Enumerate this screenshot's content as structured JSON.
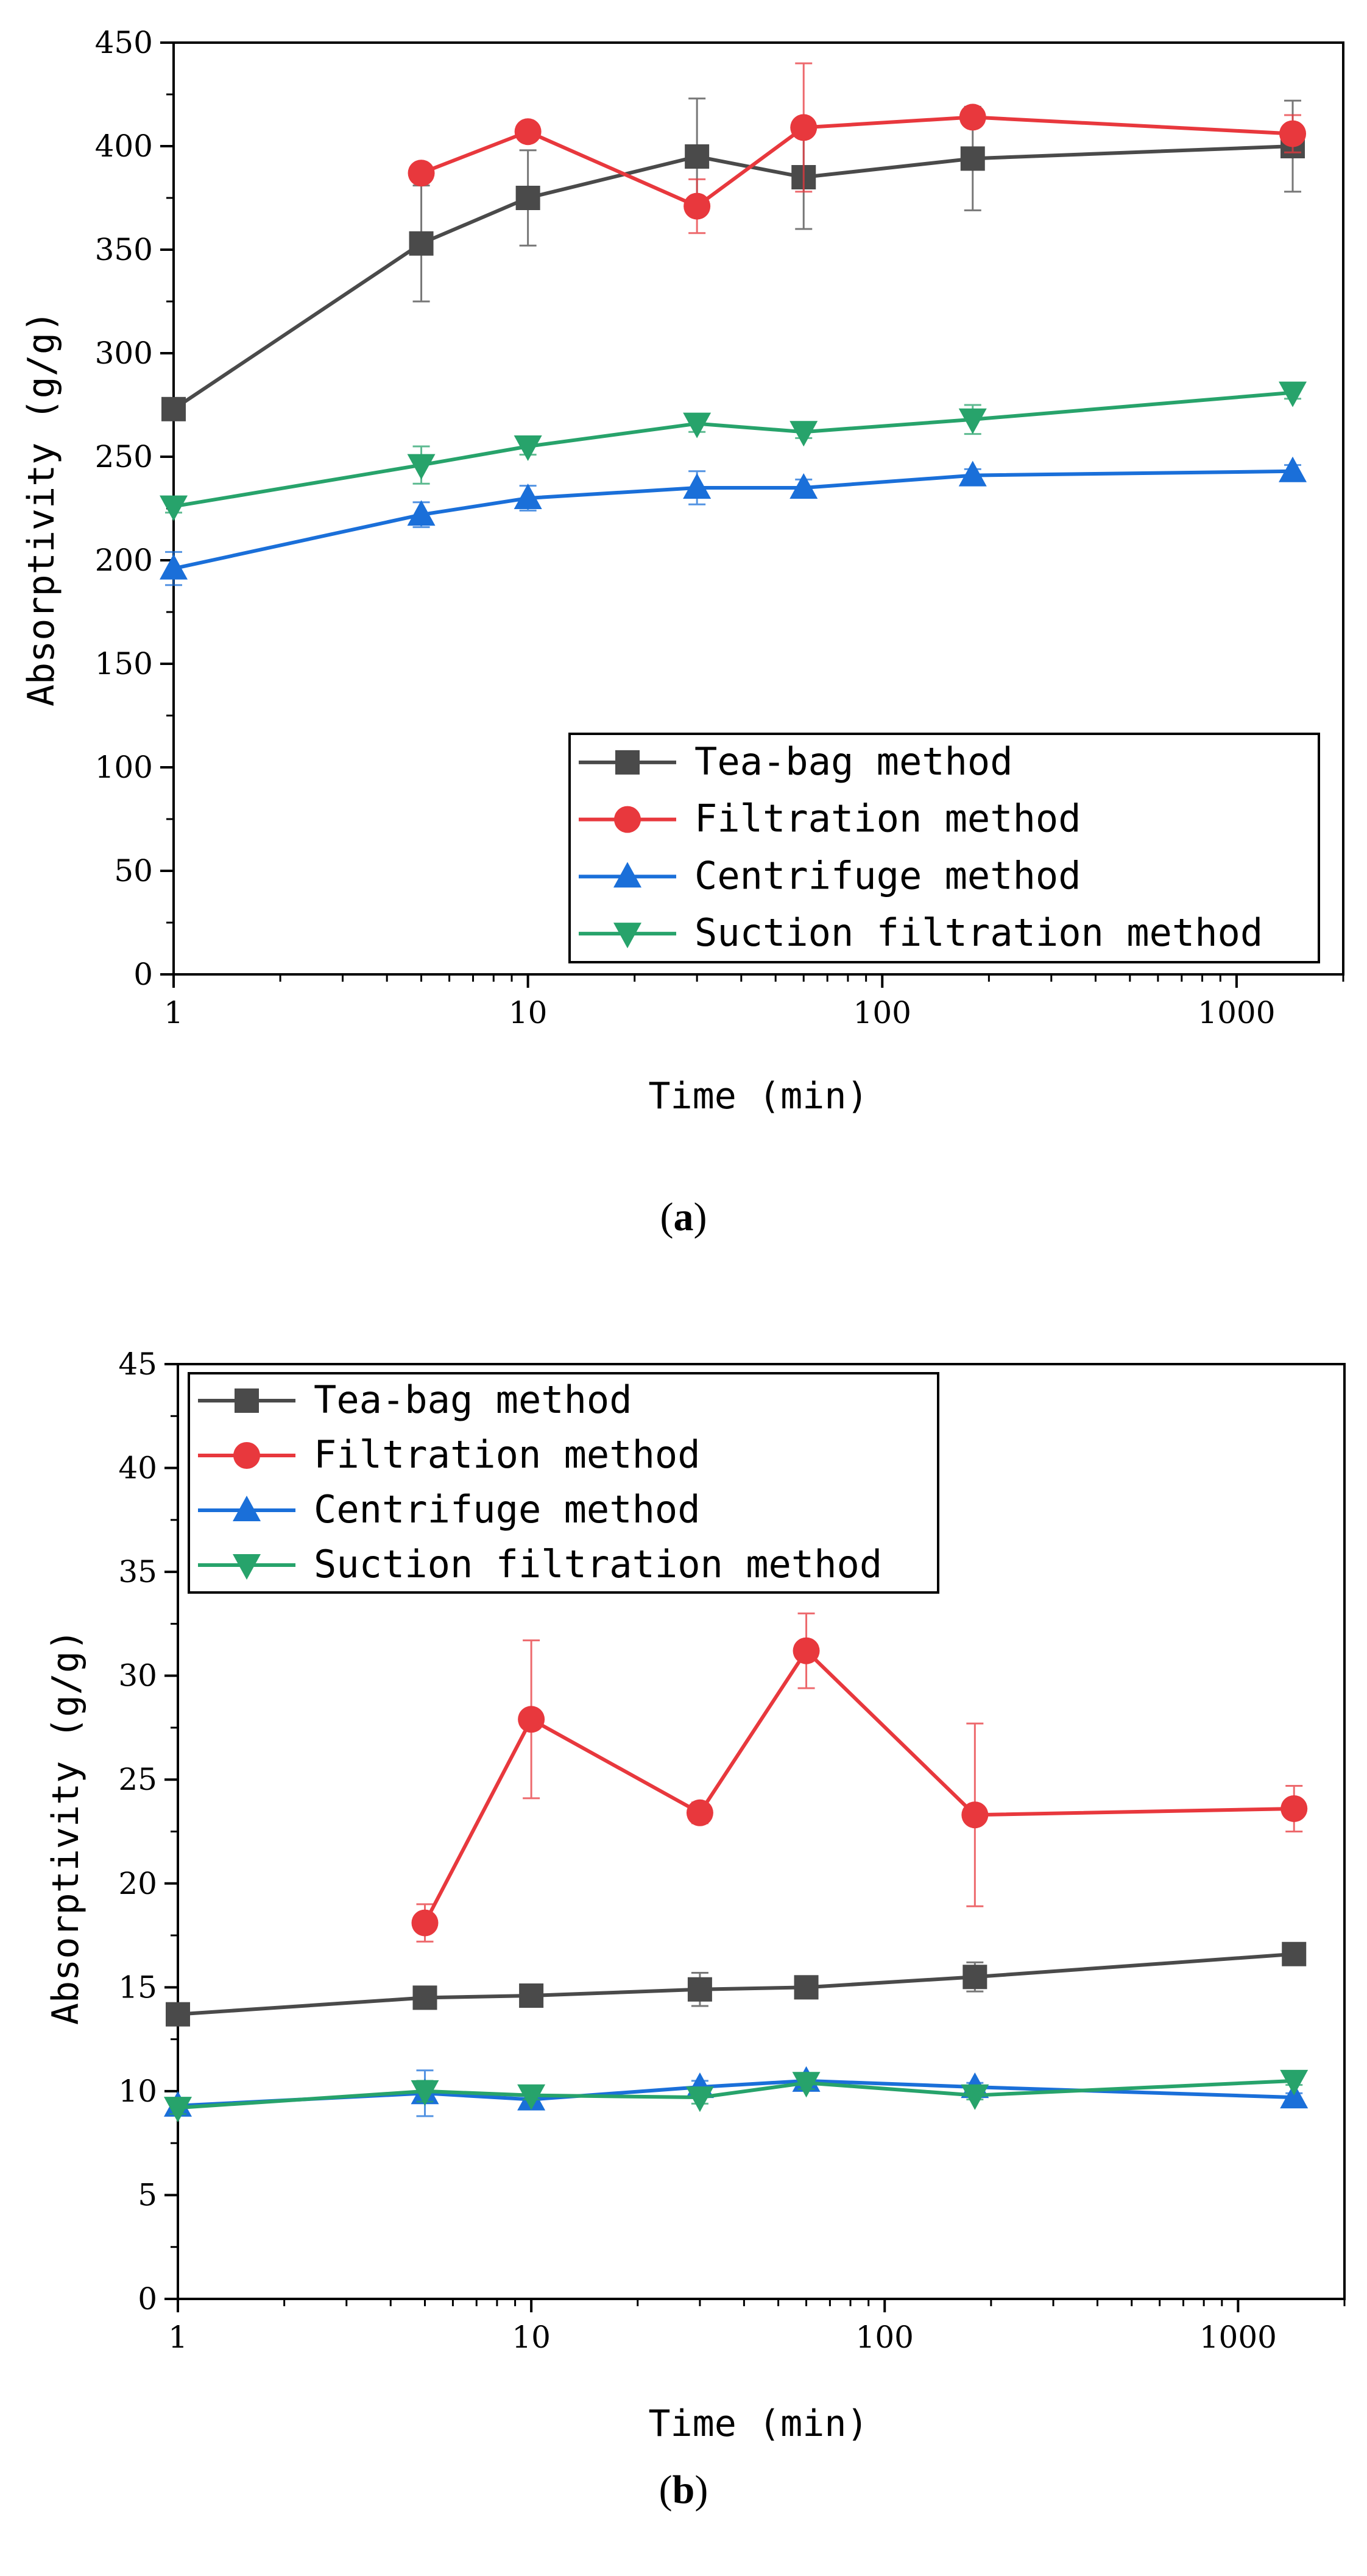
{
  "chart_data": [
    {
      "type": "line",
      "panel": "a",
      "caption_open": "(",
      "caption_letter": "a",
      "caption_close": ")",
      "xlabel": "Time (min)",
      "ylabel": "Absorptivity (g/g)",
      "xscale": "log",
      "xlim": [
        1,
        2000
      ],
      "ylim": [
        0,
        450
      ],
      "xticks": [
        1,
        10,
        100,
        1000
      ],
      "yticks": [
        0,
        50,
        100,
        150,
        200,
        250,
        300,
        350,
        400,
        450
      ],
      "legend_position": "bottom-right",
      "series": [
        {
          "name": "Tea-bag method",
          "color": "#4a4a4a",
          "marker": "square",
          "x": [
            1,
            5,
            10,
            30,
            60,
            180,
            1440
          ],
          "y": [
            273,
            353,
            375,
            395,
            385,
            394,
            400
          ],
          "err": [
            2,
            28,
            23,
            28,
            25,
            25,
            22
          ]
        },
        {
          "name": "Filtration method",
          "color": "#e8383d",
          "marker": "circle",
          "x": [
            5,
            10,
            30,
            60,
            180,
            1440
          ],
          "y": [
            387,
            407,
            371,
            409,
            414,
            406
          ],
          "err": [
            3,
            3,
            13,
            31,
            4,
            9
          ]
        },
        {
          "name": "Centrifuge method",
          "color": "#1a6fd9",
          "marker": "triangle-up",
          "x": [
            1,
            5,
            10,
            30,
            60,
            180,
            1440
          ],
          "y": [
            196,
            222,
            230,
            235,
            235,
            241,
            243
          ],
          "err": [
            8,
            6,
            6,
            8,
            4,
            3,
            3
          ]
        },
        {
          "name": "Suction filtration method",
          "color": "#27a36b",
          "marker": "triangle-down",
          "x": [
            1,
            5,
            10,
            30,
            60,
            180,
            1440
          ],
          "y": [
            226,
            246,
            255,
            266,
            262,
            268,
            281
          ],
          "err": [
            3,
            9,
            4,
            4,
            3,
            7,
            3
          ]
        }
      ]
    },
    {
      "type": "line",
      "panel": "b",
      "caption_open": "(",
      "caption_letter": "b",
      "caption_close": ")",
      "xlabel": "Time (min)",
      "ylabel": "Absorptivity (g/g)",
      "xscale": "log",
      "xlim": [
        1,
        2000
      ],
      "ylim": [
        0,
        45
      ],
      "xticks": [
        1,
        10,
        100,
        1000
      ],
      "yticks": [
        0,
        5,
        10,
        15,
        20,
        25,
        30,
        35,
        40,
        45
      ],
      "legend_position": "top-left",
      "series": [
        {
          "name": "Tea-bag method",
          "color": "#4a4a4a",
          "marker": "square",
          "x": [
            1,
            5,
            10,
            30,
            60,
            180,
            1440
          ],
          "y": [
            13.7,
            14.5,
            14.6,
            14.9,
            15.0,
            15.5,
            16.6
          ],
          "err": [
            0.4,
            0.2,
            0.4,
            0.8,
            0.2,
            0.7,
            0.5
          ]
        },
        {
          "name": "Filtration method",
          "color": "#e8383d",
          "marker": "circle",
          "x": [
            5,
            10,
            30,
            60,
            180,
            1440
          ],
          "y": [
            18.1,
            27.9,
            23.4,
            31.2,
            23.3,
            23.6
          ],
          "err": [
            0.9,
            3.8,
            0.5,
            1.8,
            4.4,
            1.1
          ]
        },
        {
          "name": "Centrifuge method",
          "color": "#1a6fd9",
          "marker": "triangle-up",
          "x": [
            1,
            5,
            10,
            30,
            60,
            180,
            1440
          ],
          "y": [
            9.3,
            9.9,
            9.6,
            10.2,
            10.5,
            10.2,
            9.7
          ],
          "err": [
            0.3,
            1.1,
            0.3,
            0.3,
            0.3,
            0.2,
            0.2
          ]
        },
        {
          "name": "Suction filtration method",
          "color": "#27a36b",
          "marker": "triangle-down",
          "x": [
            1,
            5,
            10,
            30,
            60,
            180,
            1440
          ],
          "y": [
            9.2,
            10.0,
            9.8,
            9.7,
            10.4,
            9.8,
            10.5
          ],
          "err": [
            0.3,
            0.5,
            0.2,
            0.3,
            0.3,
            0.2,
            0.2
          ]
        }
      ]
    }
  ]
}
